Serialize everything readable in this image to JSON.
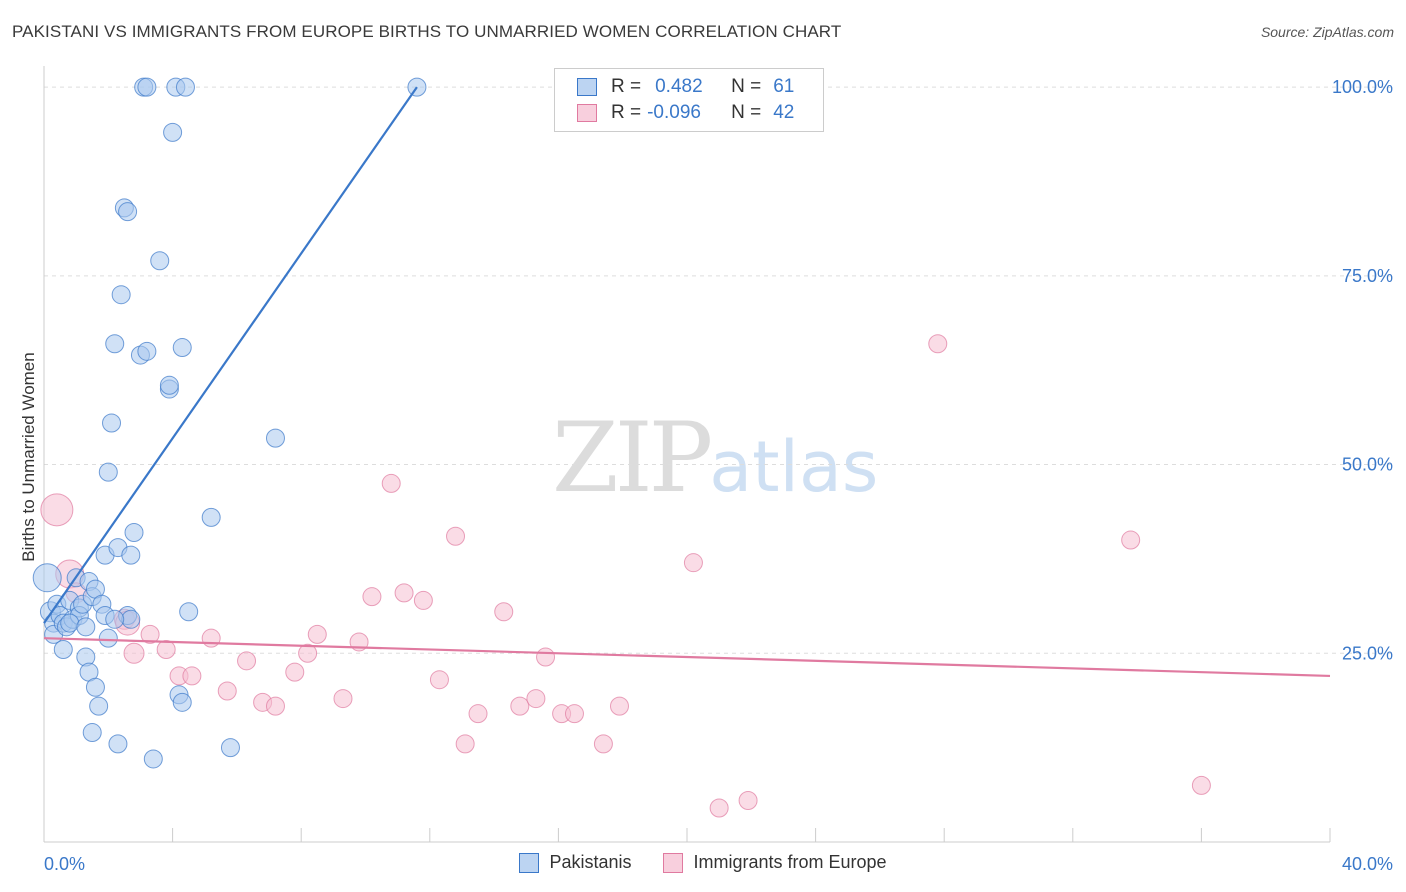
{
  "header": {
    "title": "PAKISTANI VS IMMIGRANTS FROM EUROPE BIRTHS TO UNMARRIED WOMEN CORRELATION CHART",
    "source": "Source: ZipAtlas.com"
  },
  "watermark": {
    "zip": "ZIP",
    "atlas": "atlas"
  },
  "legend": {
    "rows": [
      {
        "r_label": "R =",
        "r_value": "0.482",
        "n_label": "N =",
        "n_value": "61"
      },
      {
        "r_label": "R =",
        "r_value": "-0.096",
        "n_label": "N =",
        "n_value": "42"
      }
    ],
    "bottom": [
      "Pakistanis",
      "Immigrants from Europe"
    ]
  },
  "chart_data": {
    "type": "scatter",
    "ylabel": "Births to Unmarried Women",
    "xlim": [
      0,
      40
    ],
    "ylim": [
      0,
      102
    ],
    "x_tick_labels": [
      "0.0%",
      "40.0%"
    ],
    "y_ticks": [
      25,
      50,
      75,
      100
    ],
    "y_tick_labels": [
      "25.0%",
      "50.0%",
      "75.0%",
      "100.0%"
    ],
    "colors": {
      "blue": "#3a78c9",
      "pink": "#e07aa0",
      "blue_fill": "#aac8ee",
      "pink_fill": "#f5bfd2"
    },
    "series": [
      {
        "name": "Pakistanis",
        "color": "#3a78c9",
        "fill": "#aac8ee",
        "trend": {
          "x0": 0.0,
          "y0": 29.0,
          "x1": 11.6,
          "y1": 100.0
        },
        "points": [
          [
            0.1,
            35.0,
            14
          ],
          [
            0.2,
            30.5,
            10
          ],
          [
            0.3,
            29.0,
            9
          ],
          [
            0.3,
            27.5,
            9
          ],
          [
            0.4,
            31.5,
            9
          ],
          [
            0.5,
            30.0,
            9
          ],
          [
            0.6,
            25.5,
            9
          ],
          [
            0.6,
            29.0,
            9
          ],
          [
            0.7,
            28.5,
            9
          ],
          [
            0.8,
            32.0,
            9
          ],
          [
            0.9,
            29.5,
            9
          ],
          [
            1.0,
            35.0,
            9
          ],
          [
            1.1,
            31.0,
            9
          ],
          [
            1.1,
            30.0,
            9
          ],
          [
            1.2,
            31.5,
            9
          ],
          [
            1.3,
            24.5,
            9
          ],
          [
            1.4,
            34.5,
            9
          ],
          [
            1.4,
            22.5,
            9
          ],
          [
            1.5,
            32.5,
            9
          ],
          [
            1.6,
            33.5,
            9
          ],
          [
            1.6,
            20.5,
            9
          ],
          [
            1.7,
            18.0,
            9
          ],
          [
            1.8,
            31.5,
            9
          ],
          [
            1.9,
            30.0,
            9
          ],
          [
            1.5,
            14.5,
            9
          ],
          [
            1.9,
            38.0,
            9
          ],
          [
            2.0,
            27.0,
            9
          ],
          [
            2.0,
            49.0,
            9
          ],
          [
            2.1,
            55.5,
            9
          ],
          [
            2.2,
            66.0,
            9
          ],
          [
            2.3,
            13.0,
            9
          ],
          [
            2.3,
            39.0,
            9
          ],
          [
            2.4,
            72.5,
            9
          ],
          [
            2.5,
            84.0,
            9
          ],
          [
            2.6,
            83.5,
            9
          ],
          [
            2.6,
            30.0,
            9
          ],
          [
            2.7,
            38.0,
            9
          ],
          [
            2.8,
            41.0,
            9
          ],
          [
            2.7,
            29.5,
            9
          ],
          [
            3.0,
            64.5,
            9
          ],
          [
            3.1,
            100.0,
            9
          ],
          [
            3.2,
            65.0,
            9
          ],
          [
            3.2,
            100.0,
            9
          ],
          [
            3.4,
            11.0,
            9
          ],
          [
            3.6,
            77.0,
            9
          ],
          [
            3.9,
            60.0,
            9
          ],
          [
            3.9,
            60.5,
            9
          ],
          [
            4.0,
            94.0,
            9
          ],
          [
            4.1,
            100.0,
            9
          ],
          [
            4.2,
            19.5,
            9
          ],
          [
            4.3,
            18.5,
            9
          ],
          [
            4.3,
            65.5,
            9
          ],
          [
            4.4,
            100.0,
            9
          ],
          [
            4.5,
            30.5,
            9
          ],
          [
            5.2,
            43.0,
            9
          ],
          [
            5.8,
            12.5,
            9
          ],
          [
            7.2,
            53.5,
            9
          ],
          [
            11.6,
            100.0,
            9
          ],
          [
            2.2,
            29.5,
            9
          ],
          [
            0.8,
            29.0,
            9
          ],
          [
            1.3,
            28.5,
            9
          ]
        ]
      },
      {
        "name": "Immigrants from Europe",
        "color": "#e07aa0",
        "fill": "#f5bfd2",
        "trend": {
          "x0": 0.0,
          "y0": 27.0,
          "x1": 40.0,
          "y1": 22.0
        },
        "points": [
          [
            0.4,
            44.0,
            16
          ],
          [
            0.8,
            35.5,
            14
          ],
          [
            1.0,
            33.0,
            10
          ],
          [
            2.5,
            29.5,
            10
          ],
          [
            2.6,
            29.0,
            12
          ],
          [
            2.8,
            25.0,
            10
          ],
          [
            3.3,
            27.5,
            9
          ],
          [
            3.8,
            25.5,
            9
          ],
          [
            4.2,
            22.0,
            9
          ],
          [
            4.6,
            22.0,
            9
          ],
          [
            5.2,
            27.0,
            9
          ],
          [
            5.7,
            20.0,
            9
          ],
          [
            6.3,
            24.0,
            9
          ],
          [
            6.8,
            18.5,
            9
          ],
          [
            7.2,
            18.0,
            9
          ],
          [
            7.8,
            22.5,
            9
          ],
          [
            8.2,
            25.0,
            9
          ],
          [
            8.5,
            27.5,
            9
          ],
          [
            9.3,
            19.0,
            9
          ],
          [
            9.8,
            26.5,
            9
          ],
          [
            10.2,
            32.5,
            9
          ],
          [
            10.8,
            47.5,
            9
          ],
          [
            11.2,
            33.0,
            9
          ],
          [
            11.8,
            32.0,
            9
          ],
          [
            12.3,
            21.5,
            9
          ],
          [
            12.8,
            40.5,
            9
          ],
          [
            13.1,
            13.0,
            9
          ],
          [
            13.5,
            17.0,
            9
          ],
          [
            14.3,
            30.5,
            9
          ],
          [
            14.8,
            18.0,
            9
          ],
          [
            15.3,
            19.0,
            9
          ],
          [
            15.6,
            24.5,
            9
          ],
          [
            16.1,
            17.0,
            9
          ],
          [
            16.5,
            17.0,
            9
          ],
          [
            17.4,
            13.0,
            9
          ],
          [
            17.9,
            18.0,
            9
          ],
          [
            20.2,
            37.0,
            9
          ],
          [
            21.0,
            4.5,
            9
          ],
          [
            21.9,
            5.5,
            9
          ],
          [
            27.8,
            66.0,
            9
          ],
          [
            33.8,
            40.0,
            9
          ],
          [
            36.0,
            7.5,
            9
          ]
        ]
      }
    ]
  }
}
